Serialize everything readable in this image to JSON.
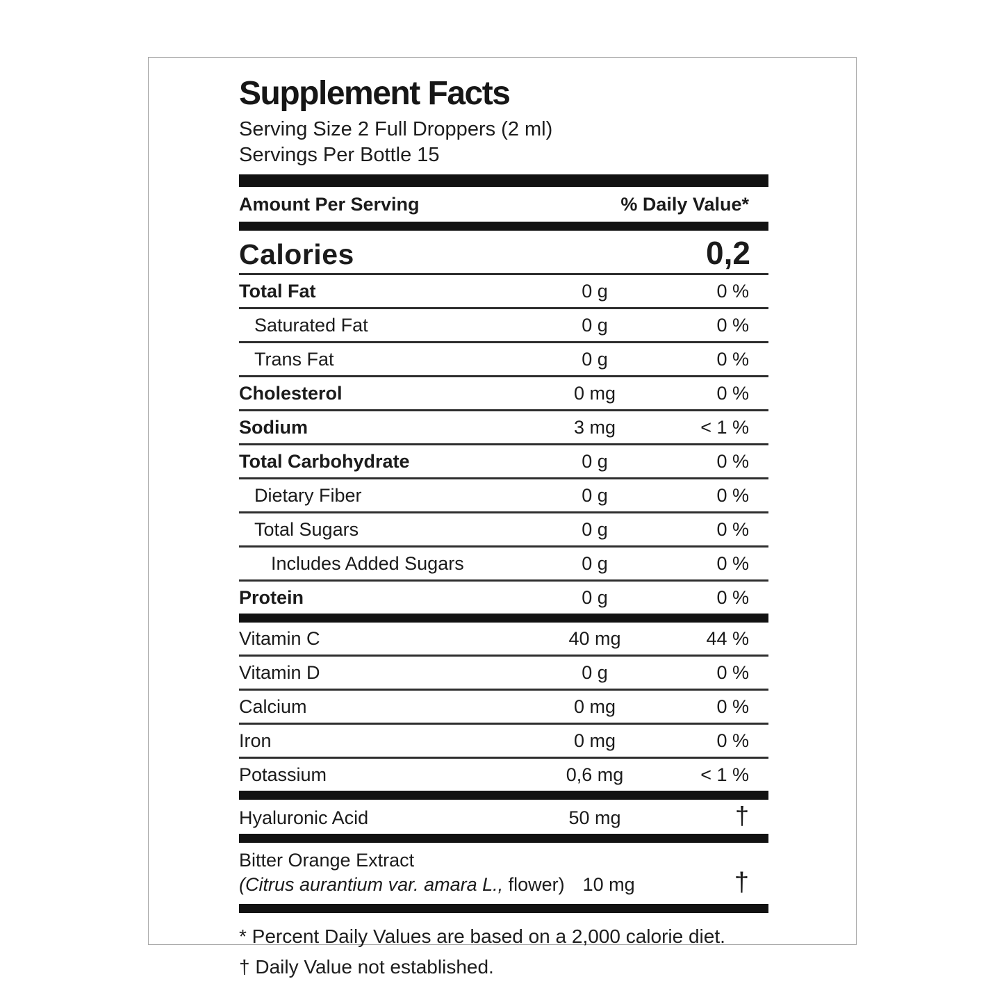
{
  "label": {
    "title": "Supplement Facts",
    "serving_size": "Serving Size 2 Full Droppers (2 ml)",
    "servings_per_bottle": "Servings Per Bottle 15",
    "header": {
      "amount_per_serving": "Amount Per Serving",
      "daily_value": "% Daily Value*"
    },
    "calories": {
      "name": "Calories",
      "value": "0,2"
    },
    "nutrient_rows": [
      {
        "name": "Total Fat",
        "amount": "0 g",
        "dv": "0 %",
        "bold": true,
        "indent": 0,
        "bar_after": false,
        "dagger": false
      },
      {
        "name": "Saturated Fat",
        "amount": "0 g",
        "dv": "0 %",
        "bold": false,
        "indent": 1,
        "bar_after": false,
        "dagger": false
      },
      {
        "name": "Trans Fat",
        "amount": "0 g",
        "dv": "0 %",
        "bold": false,
        "indent": 1,
        "bar_after": false,
        "dagger": false
      },
      {
        "name": "Cholesterol",
        "amount": "0 mg",
        "dv": "0 %",
        "bold": true,
        "indent": 0,
        "bar_after": false,
        "dagger": false
      },
      {
        "name": "Sodium",
        "amount": "3 mg",
        "dv": "< 1 %",
        "bold": true,
        "indent": 0,
        "bar_after": false,
        "dagger": false
      },
      {
        "name": "Total Carbohydrate",
        "amount": "0 g",
        "dv": "0 %",
        "bold": true,
        "indent": 0,
        "bar_after": false,
        "dagger": false
      },
      {
        "name": "Dietary Fiber",
        "amount": "0 g",
        "dv": "0 %",
        "bold": false,
        "indent": 1,
        "bar_after": false,
        "dagger": false
      },
      {
        "name": "Total Sugars",
        "amount": "0 g",
        "dv": "0 %",
        "bold": false,
        "indent": 1,
        "bar_after": false,
        "dagger": false
      },
      {
        "name": "Includes Added Sugars",
        "amount": "0 g",
        "dv": "0 %",
        "bold": false,
        "indent": 2,
        "bar_after": false,
        "dagger": false
      },
      {
        "name": "Protein",
        "amount": "0 g",
        "dv": "0 %",
        "bold": true,
        "indent": 0,
        "bar_after": true,
        "dagger": false
      },
      {
        "name": "Vitamin C",
        "amount": "40 mg",
        "dv": "44 %",
        "bold": false,
        "indent": 0,
        "bar_after": false,
        "dagger": false
      },
      {
        "name": "Vitamin D",
        "amount": "0 g",
        "dv": "0 %",
        "bold": false,
        "indent": 0,
        "bar_after": false,
        "dagger": false
      },
      {
        "name": "Calcium",
        "amount": "0 mg",
        "dv": "0 %",
        "bold": false,
        "indent": 0,
        "bar_after": false,
        "dagger": false
      },
      {
        "name": "Iron",
        "amount": "0 mg",
        "dv": "0 %",
        "bold": false,
        "indent": 0,
        "bar_after": false,
        "dagger": false
      },
      {
        "name": "Potassium",
        "amount": "0,6 mg",
        "dv": "< 1 %",
        "bold": false,
        "indent": 0,
        "bar_after": true,
        "dagger": false
      },
      {
        "name": "Hyaluronic Acid",
        "amount": "50 mg",
        "dv": "†",
        "bold": false,
        "indent": 0,
        "bar_after": true,
        "dagger": true
      }
    ],
    "botanical_row": {
      "name": "Bitter Orange Extract",
      "sub_italic": "(Citrus aurantium var. amara L.,",
      "sub_regular": " flower)",
      "amount": "10 mg",
      "dv": "†"
    },
    "footnotes": [
      "* Percent Daily Values are based on a 2,000 calorie diet.",
      "† Daily Value not established."
    ],
    "colors": {
      "text": "#1b1b1b",
      "bar": "#121212",
      "rule": "#2e2e2e",
      "box_border": "#a8a8a8",
      "background": "#ffffff"
    }
  }
}
